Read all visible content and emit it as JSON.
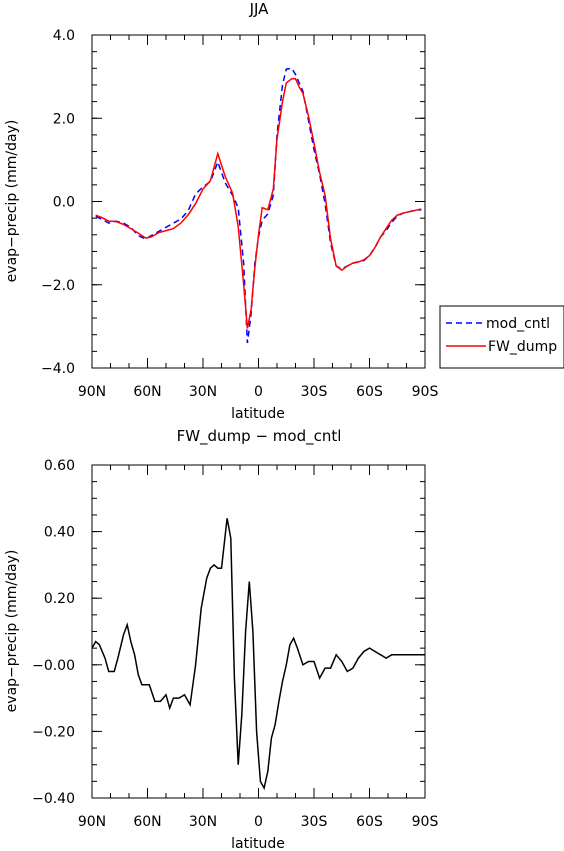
{
  "chart_data": [
    {
      "type": "line",
      "title": "JJA",
      "xlabel": "latitude",
      "ylabel": "evap−precip (mm/day)",
      "xlim": [
        -90,
        90
      ],
      "ylim": [
        -4.0,
        4.0
      ],
      "x_ticks": [
        -90,
        -60,
        -30,
        0,
        30,
        60,
        90
      ],
      "x_tick_labels": [
        "90N",
        "60N",
        "30N",
        "0",
        "30S",
        "60S",
        "90S"
      ],
      "y_ticks": [
        -4.0,
        -2.0,
        0.0,
        2.0,
        4.0
      ],
      "y_tick_labels": [
        "−4.0",
        "−2.0",
        "0.0",
        "2.0",
        "4.0"
      ],
      "grid": false,
      "legend_position": "outside-right",
      "series": [
        {
          "name": "mod_cntl",
          "color": "#0000ff",
          "dash": "dashed",
          "x": [
            -88,
            -85,
            -81,
            -77,
            -73,
            -69,
            -65,
            -61,
            -58,
            -54,
            -50,
            -46,
            -42,
            -38,
            -34,
            -30,
            -26,
            -22,
            -18,
            -14,
            -11,
            -8,
            -6,
            -4,
            -2,
            0,
            2,
            5,
            8,
            10,
            13,
            15,
            18,
            20,
            22,
            24,
            27,
            30,
            33,
            36,
            39,
            42,
            45,
            48,
            51,
            54,
            57,
            60,
            63,
            66,
            69,
            72,
            75,
            78,
            81,
            84,
            88
          ],
          "y": [
            -0.36,
            -0.42,
            -0.52,
            -0.47,
            -0.52,
            -0.62,
            -0.82,
            -0.9,
            -0.82,
            -0.72,
            -0.62,
            -0.52,
            -0.42,
            -0.22,
            0.18,
            0.35,
            0.48,
            0.95,
            0.45,
            0.15,
            -0.15,
            -1.5,
            -3.4,
            -2.7,
            -1.5,
            -0.85,
            -0.45,
            -0.3,
            0.15,
            1.6,
            2.8,
            3.18,
            3.2,
            3.05,
            2.85,
            2.65,
            1.95,
            1.25,
            0.65,
            -0.05,
            -1.0,
            -1.55,
            -1.62,
            -1.55,
            -1.48,
            -1.45,
            -1.42,
            -1.3,
            -1.1,
            -0.85,
            -0.7,
            -0.5,
            -0.35,
            -0.28,
            -0.25,
            -0.22,
            -0.2
          ]
        },
        {
          "name": "FW_dump",
          "color": "#ff0000",
          "dash": "solid",
          "x": [
            -88,
            -85,
            -81,
            -77,
            -73,
            -69,
            -65,
            -61,
            -58,
            -54,
            -50,
            -46,
            -42,
            -38,
            -34,
            -30,
            -26,
            -22,
            -18,
            -14,
            -11,
            -8,
            -6,
            -4,
            -2,
            0,
            2,
            5,
            8,
            10,
            13,
            15,
            18,
            20,
            22,
            24,
            27,
            30,
            33,
            36,
            39,
            42,
            45,
            48,
            51,
            54,
            57,
            60,
            63,
            66,
            69,
            72,
            75,
            78,
            81,
            84,
            88
          ],
          "y": [
            -0.33,
            -0.38,
            -0.47,
            -0.48,
            -0.55,
            -0.65,
            -0.76,
            -0.88,
            -0.85,
            -0.75,
            -0.7,
            -0.65,
            -0.52,
            -0.32,
            -0.05,
            0.3,
            0.5,
            1.15,
            0.6,
            0.2,
            -0.6,
            -2.0,
            -3.05,
            -2.6,
            -1.6,
            -0.8,
            -0.15,
            -0.2,
            0.3,
            1.5,
            2.4,
            2.85,
            2.95,
            2.95,
            2.75,
            2.6,
            2.05,
            1.4,
            0.7,
            0.15,
            -0.9,
            -1.55,
            -1.65,
            -1.55,
            -1.48,
            -1.45,
            -1.4,
            -1.3,
            -1.1,
            -0.85,
            -0.65,
            -0.45,
            -0.33,
            -0.28,
            -0.25,
            -0.22,
            -0.18
          ]
        }
      ]
    },
    {
      "type": "line",
      "title": "FW_dump − mod_cntl",
      "xlabel": "latitude",
      "ylabel": "evap−precip (mm/day)",
      "xlim": [
        -90,
        90
      ],
      "ylim": [
        -0.4,
        0.6
      ],
      "x_ticks": [
        -90,
        -60,
        -30,
        0,
        30,
        60,
        90
      ],
      "x_tick_labels": [
        "90N",
        "60N",
        "30N",
        "0",
        "30S",
        "60S",
        "90S"
      ],
      "y_ticks": [
        -0.4,
        -0.2,
        0.0,
        0.2,
        0.4,
        0.6
      ],
      "y_tick_labels": [
        "−0.40",
        "−0.20",
        "−0.00",
        "0.20",
        "0.40",
        "0.60"
      ],
      "grid": false,
      "series": [
        {
          "color": "#000000",
          "dash": "solid",
          "x": [
            -90,
            -88,
            -86,
            -83,
            -81,
            -78,
            -76,
            -73,
            -71,
            -69,
            -67,
            -65,
            -63,
            -61,
            -59,
            -56,
            -53,
            -50,
            -48,
            -46,
            -43,
            -40,
            -37,
            -34,
            -31,
            -28,
            -26,
            -24,
            -22,
            -20,
            -17,
            -15,
            -13,
            -11,
            -9,
            -7,
            -5,
            -3,
            -1,
            1,
            3,
            5,
            7,
            9,
            11,
            13,
            15,
            17,
            19,
            21,
            24,
            27,
            30,
            33,
            36,
            39,
            42,
            45,
            48,
            51,
            54,
            57,
            60,
            63,
            66,
            69,
            72,
            75,
            78,
            81,
            84,
            88,
            90
          ],
          "y": [
            0.05,
            0.07,
            0.06,
            0.02,
            -0.02,
            -0.02,
            0.02,
            0.09,
            0.12,
            0.07,
            0.03,
            -0.03,
            -0.06,
            -0.06,
            -0.06,
            -0.11,
            -0.11,
            -0.09,
            -0.13,
            -0.1,
            -0.1,
            -0.09,
            -0.12,
            0.0,
            0.17,
            0.26,
            0.29,
            0.3,
            0.29,
            0.29,
            0.44,
            0.38,
            -0.04,
            -0.3,
            -0.15,
            0.1,
            0.25,
            0.1,
            -0.2,
            -0.35,
            -0.37,
            -0.32,
            -0.22,
            -0.18,
            -0.11,
            -0.05,
            0.0,
            0.06,
            0.08,
            0.05,
            0.0,
            0.01,
            0.01,
            -0.04,
            -0.01,
            -0.01,
            0.03,
            0.01,
            -0.02,
            -0.01,
            0.02,
            0.04,
            0.05,
            0.04,
            0.03,
            0.02,
            0.03,
            0.03,
            0.03,
            0.03,
            0.03,
            0.03,
            0.03
          ]
        }
      ]
    }
  ]
}
